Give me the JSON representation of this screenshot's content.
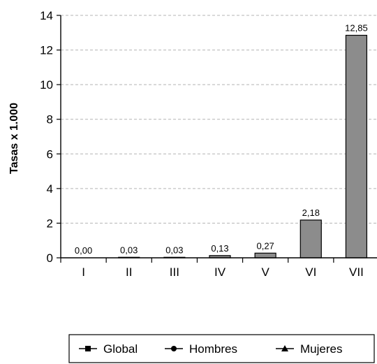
{
  "chart_data": {
    "type": "bar",
    "categories": [
      "I",
      "II",
      "III",
      "IV",
      "V",
      "VI",
      "VII"
    ],
    "values": [
      0.0,
      0.03,
      0.03,
      0.13,
      0.27,
      2.18,
      12.85
    ],
    "value_labels": [
      "0,00",
      "0,03",
      "0,03",
      "0,13",
      "0,27",
      "2,18",
      "12,85"
    ],
    "ylabel": "Tasas x 1.000",
    "ylim": [
      0,
      14
    ],
    "yticks": [
      0,
      2,
      4,
      6,
      8,
      10,
      12,
      14
    ],
    "grid": "horizontal-dashed",
    "bar_color": "#8c8c8c",
    "legend": {
      "placement": "bottom",
      "entries": [
        {
          "name": "Global",
          "marker": "square"
        },
        {
          "name": "Hombres",
          "marker": "circle"
        },
        {
          "name": "Mujeres",
          "marker": "triangle"
        }
      ]
    }
  }
}
